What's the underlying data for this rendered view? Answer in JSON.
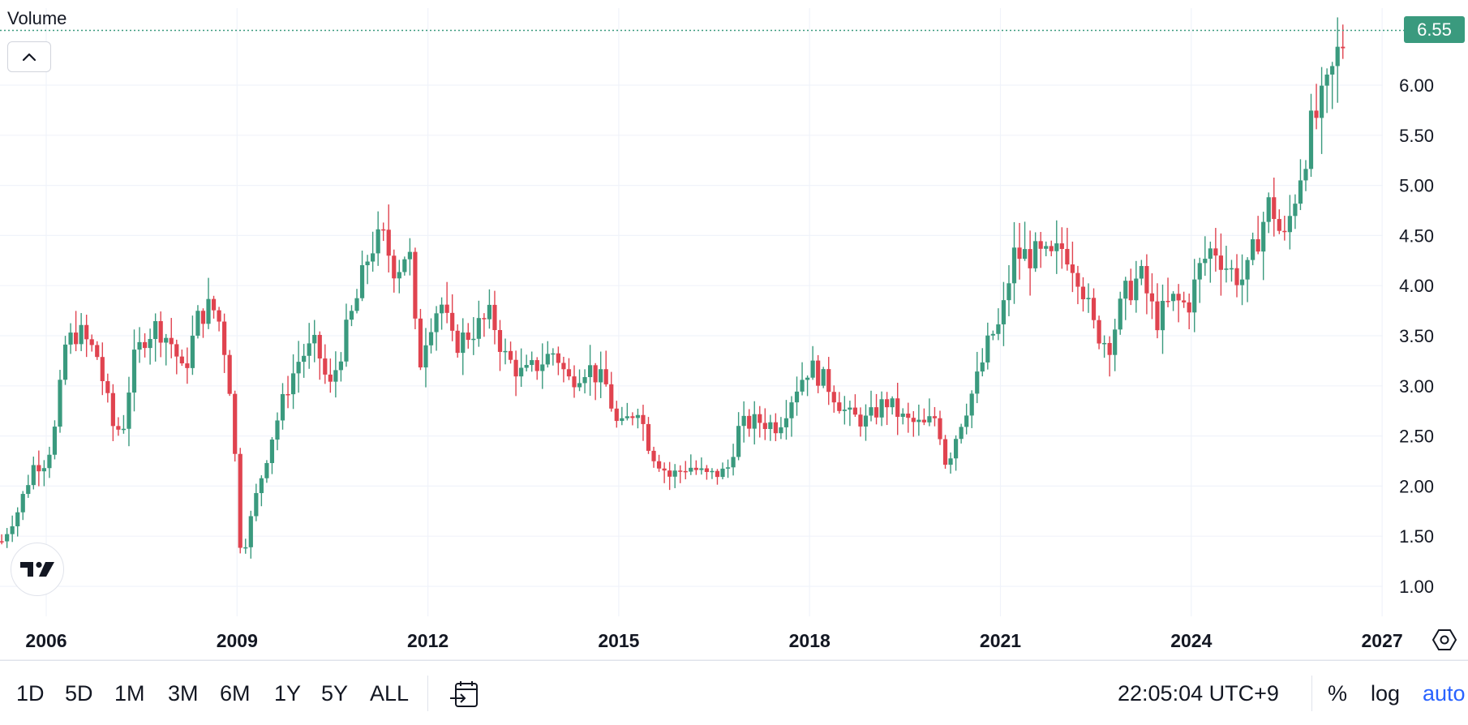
{
  "chart_data": {
    "type": "candlestick",
    "title": "Volume",
    "y_axis": {
      "ticks": [
        "1.00",
        "1.50",
        "2.00",
        "2.50",
        "3.00",
        "3.50",
        "4.00",
        "4.50",
        "5.00",
        "5.50",
        "6.00"
      ],
      "range": [
        0.5,
        6.75
      ]
    },
    "x_axis": {
      "ticks": [
        "2006",
        "2009",
        "2012",
        "2015",
        "2018",
        "2021",
        "2024",
        "2027"
      ],
      "range": [
        2005.3,
        2027.3
      ]
    },
    "last_price": "6.55",
    "grid": true,
    "colors": {
      "up": "#3a9a7e",
      "down": "#e0434f",
      "last_price_line": "#3a9a7e",
      "grid": "#f0f3fa"
    },
    "trend": [
      [
        2005.3,
        1.45
      ],
      [
        2005.55,
        1.75
      ],
      [
        2005.8,
        2.2
      ],
      [
        2006.0,
        2.25
      ],
      [
        2006.15,
        2.6
      ],
      [
        2006.3,
        3.4
      ],
      [
        2006.5,
        3.55
      ],
      [
        2006.8,
        3.3
      ],
      [
        2007.05,
        2.6
      ],
      [
        2007.2,
        2.55
      ],
      [
        2007.35,
        3.2
      ],
      [
        2007.55,
        3.5
      ],
      [
        2007.75,
        3.6
      ],
      [
        2008.0,
        3.4
      ],
      [
        2008.15,
        3.1
      ],
      [
        2008.4,
        3.7
      ],
      [
        2008.6,
        3.8
      ],
      [
        2008.75,
        3.6
      ],
      [
        2008.95,
        2.7
      ],
      [
        2009.0,
        1.5
      ],
      [
        2009.1,
        1.35
      ],
      [
        2009.3,
        1.9
      ],
      [
        2009.55,
        2.5
      ],
      [
        2009.8,
        3.0
      ],
      [
        2010.0,
        3.3
      ],
      [
        2010.25,
        3.4
      ],
      [
        2010.45,
        2.95
      ],
      [
        2010.7,
        3.5
      ],
      [
        2010.9,
        3.9
      ],
      [
        2011.1,
        4.4
      ],
      [
        2011.3,
        4.45
      ],
      [
        2011.5,
        4.15
      ],
      [
        2011.7,
        4.4
      ],
      [
        2011.85,
        3.15
      ],
      [
        2012.0,
        3.6
      ],
      [
        2012.2,
        3.85
      ],
      [
        2012.4,
        3.4
      ],
      [
        2012.7,
        3.55
      ],
      [
        2013.0,
        3.7
      ],
      [
        2013.2,
        3.3
      ],
      [
        2013.5,
        3.1
      ],
      [
        2013.8,
        3.25
      ],
      [
        2014.0,
        3.35
      ],
      [
        2014.2,
        3.05
      ],
      [
        2014.5,
        3.2
      ],
      [
        2014.8,
        3.0
      ],
      [
        2015.0,
        2.55
      ],
      [
        2015.3,
        2.8
      ],
      [
        2015.5,
        2.35
      ],
      [
        2015.8,
        2.1
      ],
      [
        2016.1,
        2.2
      ],
      [
        2016.4,
        2.1
      ],
      [
        2016.7,
        2.15
      ],
      [
        2016.9,
        2.6
      ],
      [
        2017.2,
        2.65
      ],
      [
        2017.5,
        2.6
      ],
      [
        2017.8,
        3.0
      ],
      [
        2018.0,
        3.2
      ],
      [
        2018.3,
        3.0
      ],
      [
        2018.6,
        2.7
      ],
      [
        2018.9,
        2.65
      ],
      [
        2019.2,
        2.85
      ],
      [
        2019.5,
        2.65
      ],
      [
        2019.8,
        2.6
      ],
      [
        2020.0,
        2.7
      ],
      [
        2020.15,
        2.2
      ],
      [
        2020.35,
        2.6
      ],
      [
        2020.6,
        3.0
      ],
      [
        2020.85,
        3.5
      ],
      [
        2021.0,
        3.6
      ],
      [
        2021.2,
        4.3
      ],
      [
        2021.5,
        4.3
      ],
      [
        2021.8,
        4.25
      ],
      [
        2022.0,
        4.4
      ],
      [
        2022.25,
        4.1
      ],
      [
        2022.45,
        3.6
      ],
      [
        2022.7,
        3.4
      ],
      [
        2022.95,
        3.9
      ],
      [
        2023.2,
        4.1
      ],
      [
        2023.45,
        3.65
      ],
      [
        2023.7,
        3.85
      ],
      [
        2023.95,
        3.8
      ],
      [
        2024.15,
        4.2
      ],
      [
        2024.35,
        4.4
      ],
      [
        2024.6,
        4.15
      ],
      [
        2024.85,
        4.05
      ],
      [
        2025.05,
        4.5
      ],
      [
        2025.25,
        4.85
      ],
      [
        2025.45,
        4.4
      ],
      [
        2025.7,
        5.1
      ],
      [
        2025.9,
        5.6
      ],
      [
        2026.1,
        5.85
      ],
      [
        2026.3,
        6.3
      ],
      [
        2026.45,
        6.55
      ]
    ]
  },
  "ui": {
    "collapse_icon": "chevron-up-icon",
    "logo_icon": "tradingview-logo-icon",
    "time_ranges": [
      "1D",
      "5D",
      "1M",
      "3M",
      "6M",
      "1Y",
      "5Y",
      "ALL"
    ],
    "go_to_date_icon": "calendar-goto-icon",
    "clock": "22:05:04 UTC+9",
    "percent_label": "%",
    "log_label": "log",
    "auto_label": "auto",
    "settings_icon": "settings-hexagon-icon"
  }
}
